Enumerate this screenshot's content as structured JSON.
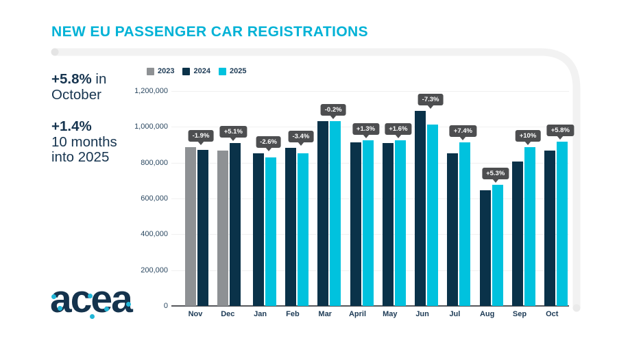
{
  "title": "NEW EU PASSENGER CAR REGISTRATIONS",
  "stats": [
    {
      "bold": "+5.8%",
      "after": " in",
      "line2": "October"
    },
    {
      "bold": "+1.4%",
      "after": "",
      "line2": "10 months",
      "line3": "into 2025"
    }
  ],
  "logo": {
    "text": "acea"
  },
  "legend": [
    {
      "label": "2023",
      "color": "#8e9194"
    },
    {
      "label": "2024",
      "color": "#0a3249"
    },
    {
      "label": "2025",
      "color": "#00c2de"
    }
  ],
  "colors": {
    "accent_cyan": "#00b2d6",
    "navy_text": "#16344f",
    "tooltip_bg": "#4d4e50",
    "axis_line": "#55565a",
    "gridline": "#f0f0f0"
  },
  "chart_data": {
    "type": "bar",
    "title": "NEW EU PASSENGER CAR REGISTRATIONS",
    "xlabel": "",
    "ylabel": "",
    "categories": [
      "Nov",
      "Dec",
      "Jan",
      "Feb",
      "Mar",
      "April",
      "May",
      "Jun",
      "Jul",
      "Aug",
      "Sep",
      "Oct"
    ],
    "series": [
      {
        "name": "2023",
        "color": "#8e9194",
        "values": [
          888000,
          866000,
          null,
          null,
          null,
          null,
          null,
          null,
          null,
          null,
          null,
          null
        ]
      },
      {
        "name": "2024",
        "color": "#0a3249",
        "values": [
          871000,
          910000,
          853000,
          884000,
          1032000,
          913000,
          911000,
          1090000,
          852000,
          644000,
          808000,
          869000
        ]
      },
      {
        "name": "2025",
        "color": "#00c2de",
        "values": [
          null,
          null,
          831000,
          854000,
          1030000,
          925000,
          926000,
          1011000,
          915000,
          678000,
          888000,
          919000
        ]
      }
    ],
    "change_labels": [
      "-1.9%",
      "+5.1%",
      "-2.6%",
      "-3.4%",
      "-0.2%",
      "+1.3%",
      "+1.6%",
      "-7.3%",
      "+7.4%",
      "+5.3%",
      "+10%",
      "+5.8%"
    ],
    "ylim": [
      0,
      1200000
    ],
    "ytick_step": 200000,
    "yticks_labels": [
      "0",
      "200,000",
      "400,000",
      "600,000",
      "800,000",
      "1,000,000",
      "1,200,000"
    ],
    "grid": true,
    "legend_position": "top-left"
  }
}
